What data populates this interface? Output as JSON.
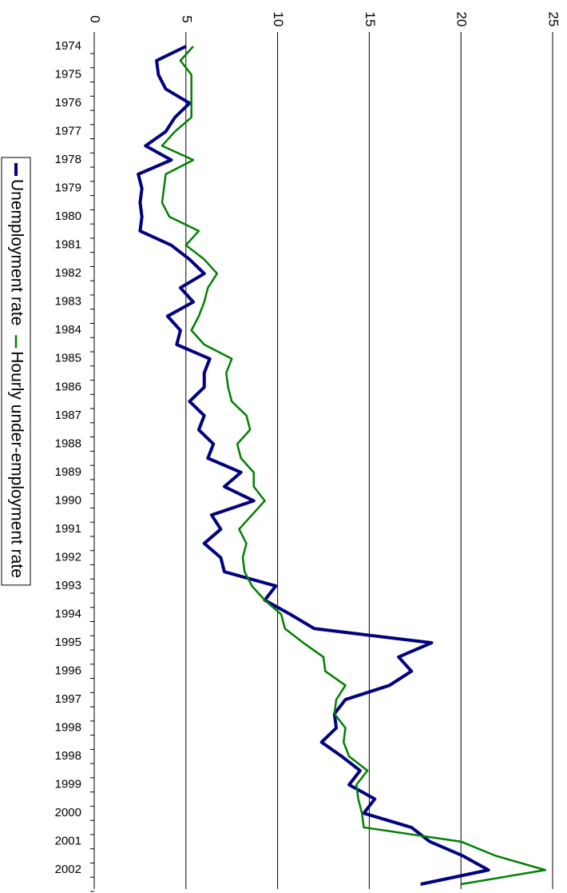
{
  "chart_data": {
    "type": "line",
    "orientation": "rotated",
    "categories": [
      "1974",
      null,
      "1975",
      null,
      "1976",
      null,
      "1977",
      null,
      "1978",
      null,
      "1979",
      null,
      "1980",
      null,
      "1981",
      null,
      "1982",
      null,
      "1983",
      null,
      "1984",
      null,
      "1985",
      null,
      "1986",
      null,
      "1987",
      null,
      "1988",
      null,
      "1989",
      null,
      "1990",
      null,
      "1991",
      null,
      "1992",
      null,
      "1993",
      null,
      "1994",
      null,
      "1995",
      null,
      "1996",
      null,
      "1997",
      null,
      "1998",
      null,
      "1998",
      null,
      "1999",
      null,
      "2000",
      null,
      "2001",
      null,
      "2002",
      null
    ],
    "series": [
      {
        "name": "Unemployment rate",
        "color": "#000080",
        "width": 4,
        "values": [
          5.0,
          3.4,
          3.5,
          3.9,
          5.2,
          4.4,
          3.9,
          2.8,
          4.2,
          2.4,
          2.6,
          2.5,
          2.6,
          2.5,
          4.2,
          5.2,
          6.0,
          4.7,
          5.4,
          4.0,
          4.7,
          4.5,
          6.3,
          6.0,
          6.0,
          5.2,
          6.0,
          5.7,
          6.5,
          6.2,
          8.0,
          7.1,
          8.7,
          6.4,
          6.9,
          6.0,
          6.9,
          7.1,
          9.9,
          9.3,
          10.7,
          12.0,
          18.4,
          16.6,
          17.3,
          16.1,
          13.7,
          13.1,
          13.2,
          12.4,
          13.5,
          14.5,
          13.9,
          15.3,
          14.7,
          17.3,
          18.3,
          20.1,
          21.5,
          17.8
        ]
      },
      {
        "name": "Hourly under-employment rate",
        "color": "#008000",
        "width": 2.5,
        "values": [
          5.4,
          4.7,
          5.3,
          5.3,
          5.3,
          5.3,
          4.4,
          3.7,
          5.4,
          3.9,
          3.8,
          3.7,
          4.1,
          5.7,
          5.0,
          6.0,
          6.7,
          6.2,
          6.0,
          5.7,
          5.3,
          6.0,
          7.5,
          7.2,
          7.3,
          7.5,
          8.3,
          8.5,
          7.8,
          8.0,
          8.7,
          8.7,
          9.3,
          8.6,
          7.9,
          8.3,
          8.1,
          8.2,
          8.6,
          9.3,
          10.2,
          10.4,
          11.4,
          12.5,
          12.6,
          13.7,
          13.2,
          13.1,
          13.7,
          13.6,
          13.9,
          14.9,
          14.3,
          14.4,
          14.6,
          14.7,
          20.0,
          21.9,
          24.6,
          20.0
        ]
      }
    ],
    "ylim": [
      0,
      25
    ],
    "yticks": [
      0,
      5,
      10,
      15,
      20,
      25
    ],
    "grid": true,
    "legend": "left"
  }
}
